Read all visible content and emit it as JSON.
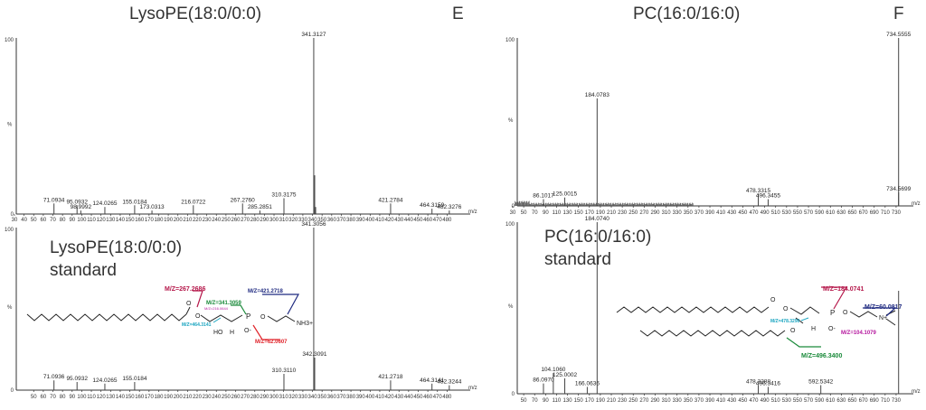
{
  "titles": {
    "left": "LysoPE(18:0/0:0)",
    "right": "PC(16:0/16:0)",
    "left_letter": "E",
    "right_letter": "F"
  },
  "standard_labels": {
    "left": {
      "line1": "LysoPE(18:0/0:0)",
      "line2": "standard"
    },
    "right": {
      "line1": "PC(16:0/16:0)",
      "line2": "standard"
    }
  },
  "axis": {
    "y_top": "100",
    "y_bottom": "0",
    "y_unit": "%",
    "x_unit": "m/z"
  },
  "structures": {
    "left": {
      "annotations": [
        {
          "text": "M/Z=267.2686",
          "color": "#b5174a"
        },
        {
          "text": "M/Z=421.2718",
          "color": "#1f2a80"
        },
        {
          "text": "M/Z=341.3059",
          "color": "#1a8a3a"
        },
        {
          "text": "M/Z=464.3141",
          "color": "#1aa5c0"
        },
        {
          "text": "M/Z=62.0607",
          "color": "#e0232a"
        },
        {
          "text": "M/Z=216.0644",
          "color": "#b5179e"
        }
      ],
      "groups": [
        "O",
        "O",
        "P",
        "O",
        "NH3+",
        "HO",
        "H",
        "O-"
      ]
    },
    "right": {
      "annotations": [
        {
          "text": "M/Z=184.0741",
          "color": "#b5174a"
        },
        {
          "text": "M/Z=60.0817",
          "color": "#1f2a80"
        },
        {
          "text": "M/Z=478.3290",
          "color": "#1aa5c0"
        },
        {
          "text": "M/Z=104.1079",
          "color": "#b5179e"
        },
        {
          "text": "M/Z=496.3400",
          "color": "#1a8a3a"
        }
      ],
      "groups": [
        "O",
        "O",
        "O",
        "P",
        "O",
        "N+",
        "H",
        "O-"
      ]
    }
  },
  "chart_data": [
    {
      "type": "bar",
      "panel": "E-sample",
      "xlabel": "m/z",
      "ylabel": "%",
      "xlim": [
        30,
        490
      ],
      "ylim": [
        0,
        100
      ],
      "x_ticks": [
        30,
        40,
        50,
        60,
        70,
        80,
        90,
        100,
        110,
        120,
        130,
        140,
        150,
        160,
        170,
        180,
        190,
        200,
        210,
        220,
        230,
        240,
        250,
        260,
        270,
        280,
        290,
        300,
        310,
        320,
        330,
        340,
        350,
        360,
        370,
        380,
        390,
        400,
        410,
        420,
        430,
        440,
        450,
        460,
        470,
        480
      ],
      "peaks": [
        {
          "x": 71.0934,
          "y": 6,
          "label": "71.0934"
        },
        {
          "x": 95.0932,
          "y": 5,
          "label": "95.0932"
        },
        {
          "x": 98.9992,
          "y": 2,
          "label": "98.9992"
        },
        {
          "x": 124.0265,
          "y": 4,
          "label": "124.0265"
        },
        {
          "x": 155.0184,
          "y": 5,
          "label": "155.0184"
        },
        {
          "x": 173.0313,
          "y": 2,
          "label": "173.0313"
        },
        {
          "x": 216.0722,
          "y": 5,
          "label": "216.0722"
        },
        {
          "x": 267.276,
          "y": 6,
          "label": "267.2760"
        },
        {
          "x": 285.2851,
          "y": 2,
          "label": "285.2851"
        },
        {
          "x": 310.3175,
          "y": 9,
          "label": "310.3175"
        },
        {
          "x": 341.3127,
          "y": 100,
          "label": "341.3127"
        },
        {
          "x": 342.3,
          "y": 22,
          "label": ""
        },
        {
          "x": 343.3,
          "y": 4,
          "label": ""
        },
        {
          "x": 421.2784,
          "y": 6,
          "label": "421.2784"
        },
        {
          "x": 464.3159,
          "y": 3,
          "label": "464.3159"
        },
        {
          "x": 482.3276,
          "y": 2,
          "label": "482.3276"
        }
      ]
    },
    {
      "type": "bar",
      "panel": "E-standard",
      "xlabel": "m/z",
      "ylabel": "%",
      "xlim": [
        30,
        490
      ],
      "ylim": [
        0,
        100
      ],
      "x_ticks": [
        50,
        60,
        70,
        80,
        90,
        100,
        110,
        120,
        130,
        140,
        150,
        160,
        170,
        180,
        190,
        200,
        210,
        220,
        230,
        240,
        250,
        260,
        270,
        280,
        290,
        300,
        310,
        320,
        330,
        340,
        350,
        360,
        370,
        380,
        390,
        400,
        410,
        420,
        430,
        440,
        450,
        460,
        470,
        480
      ],
      "peaks": [
        {
          "x": 71.0936,
          "y": 6,
          "label": "71.0936"
        },
        {
          "x": 95.0932,
          "y": 5,
          "label": "95.0932"
        },
        {
          "x": 124.0265,
          "y": 4,
          "label": "124.0265"
        },
        {
          "x": 155.0184,
          "y": 5,
          "label": "155.0184"
        },
        {
          "x": 310.311,
          "y": 10,
          "label": "310.3110"
        },
        {
          "x": 341.3056,
          "y": 100,
          "label": "341.3056"
        },
        {
          "x": 342.3091,
          "y": 20,
          "label": "342.3091"
        },
        {
          "x": 421.2718,
          "y": 6,
          "label": "421.2718"
        },
        {
          "x": 464.3141,
          "y": 4,
          "label": "464.3141"
        },
        {
          "x": 482.3244,
          "y": 3,
          "label": "482.3244"
        }
      ]
    },
    {
      "type": "bar",
      "panel": "F-sample",
      "xlabel": "m/z",
      "ylabel": "%",
      "xlim": [
        30,
        740
      ],
      "ylim": [
        0,
        100
      ],
      "x_ticks": [
        30,
        50,
        70,
        90,
        110,
        130,
        150,
        170,
        190,
        210,
        230,
        250,
        270,
        290,
        310,
        330,
        350,
        370,
        390,
        410,
        430,
        450,
        470,
        490,
        510,
        530,
        550,
        570,
        590,
        610,
        630,
        650,
        670,
        690,
        710,
        730
      ],
      "peaks": [
        {
          "x": 86.1017,
          "y": 4,
          "label": "86.1017"
        },
        {
          "x": 125.0015,
          "y": 5,
          "label": "125.0015"
        },
        {
          "x": 184.0783,
          "y": 64,
          "label": "184.0783"
        },
        {
          "x": 478.3315,
          "y": 7,
          "label": "478.3315"
        },
        {
          "x": 496.3455,
          "y": 4,
          "label": "496.3455"
        },
        {
          "x": 734.5555,
          "y": 100,
          "label": "734.5555"
        },
        {
          "x": 734.5699,
          "y": 8,
          "label": "734.5699"
        }
      ]
    },
    {
      "type": "bar",
      "panel": "F-standard",
      "xlabel": "m/z",
      "ylabel": "%",
      "xlim": [
        30,
        740
      ],
      "ylim": [
        0,
        100
      ],
      "x_ticks": [
        50,
        70,
        90,
        110,
        130,
        150,
        170,
        190,
        210,
        230,
        250,
        270,
        290,
        310,
        330,
        350,
        370,
        390,
        410,
        430,
        450,
        470,
        490,
        510,
        530,
        550,
        570,
        590,
        610,
        630,
        650,
        670,
        690,
        710,
        730
      ],
      "peaks": [
        {
          "x": 86.097,
          "y": 6,
          "label": "86.0970"
        },
        {
          "x": 104.106,
          "y": 12,
          "label": "104.1060"
        },
        {
          "x": 125.0002,
          "y": 9,
          "label": "125.0002"
        },
        {
          "x": 166.0636,
          "y": 4,
          "label": "166.0636"
        },
        {
          "x": 184.074,
          "y": 100,
          "label": "184.0740"
        },
        {
          "x": 478.3288,
          "y": 5,
          "label": "478.3288"
        },
        {
          "x": 496.3416,
          "y": 4,
          "label": "496.3416"
        },
        {
          "x": 592.5342,
          "y": 5,
          "label": "592.5342"
        },
        {
          "x": 734.5695,
          "y": 60,
          "label": ""
        }
      ]
    }
  ]
}
